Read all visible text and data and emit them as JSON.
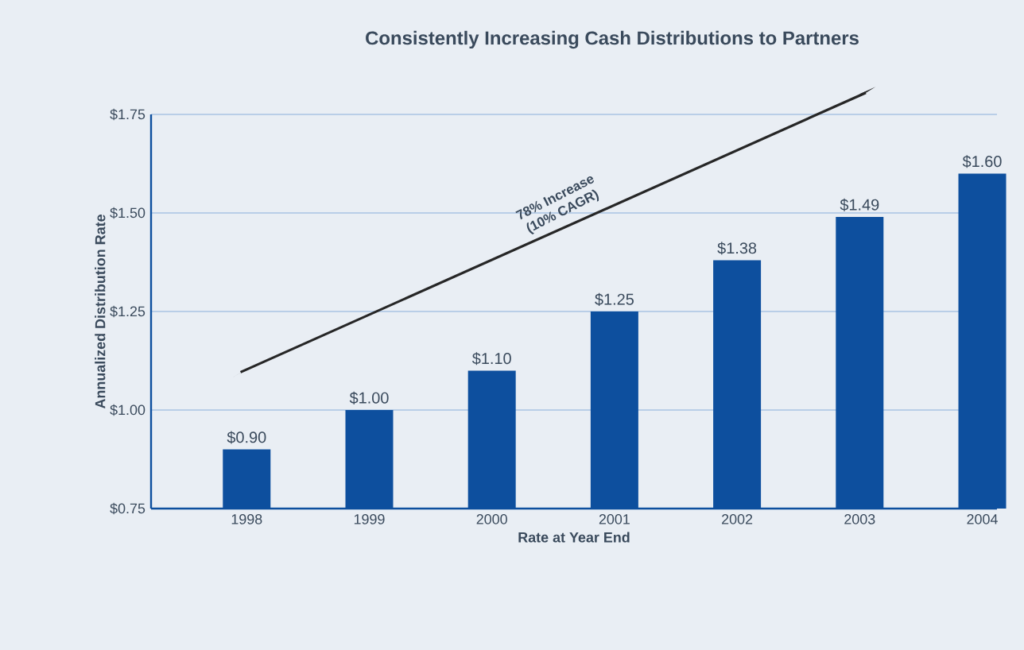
{
  "chart_data": {
    "type": "bar",
    "title": "Consistently Increasing Cash Distributions to Partners",
    "xlabel": "Rate at Year End",
    "ylabel": "Annualized Distribution Rate",
    "categories": [
      "1998",
      "1999",
      "2000",
      "2001",
      "2002",
      "2003",
      "2004"
    ],
    "values": [
      0.9,
      1.0,
      1.1,
      1.25,
      1.38,
      1.49,
      1.6
    ],
    "value_labels": [
      "$0.90",
      "$1.00",
      "$1.10",
      "$1.25",
      "$1.38",
      "$1.49",
      "$1.60"
    ],
    "color": "#0d4f9e",
    "ylim": [
      0.75,
      1.75
    ],
    "yticks": [
      {
        "value": 0.75,
        "label": "$0.75"
      },
      {
        "value": 1.0,
        "label": "$1.00"
      },
      {
        "value": 1.25,
        "label": "$1.25"
      },
      {
        "value": 1.5,
        "label": "$1.50"
      },
      {
        "value": 1.75,
        "label": "$1.75"
      }
    ],
    "grid": "y",
    "annotations": [
      "78% Increase",
      "(10% CAGR)"
    ]
  }
}
